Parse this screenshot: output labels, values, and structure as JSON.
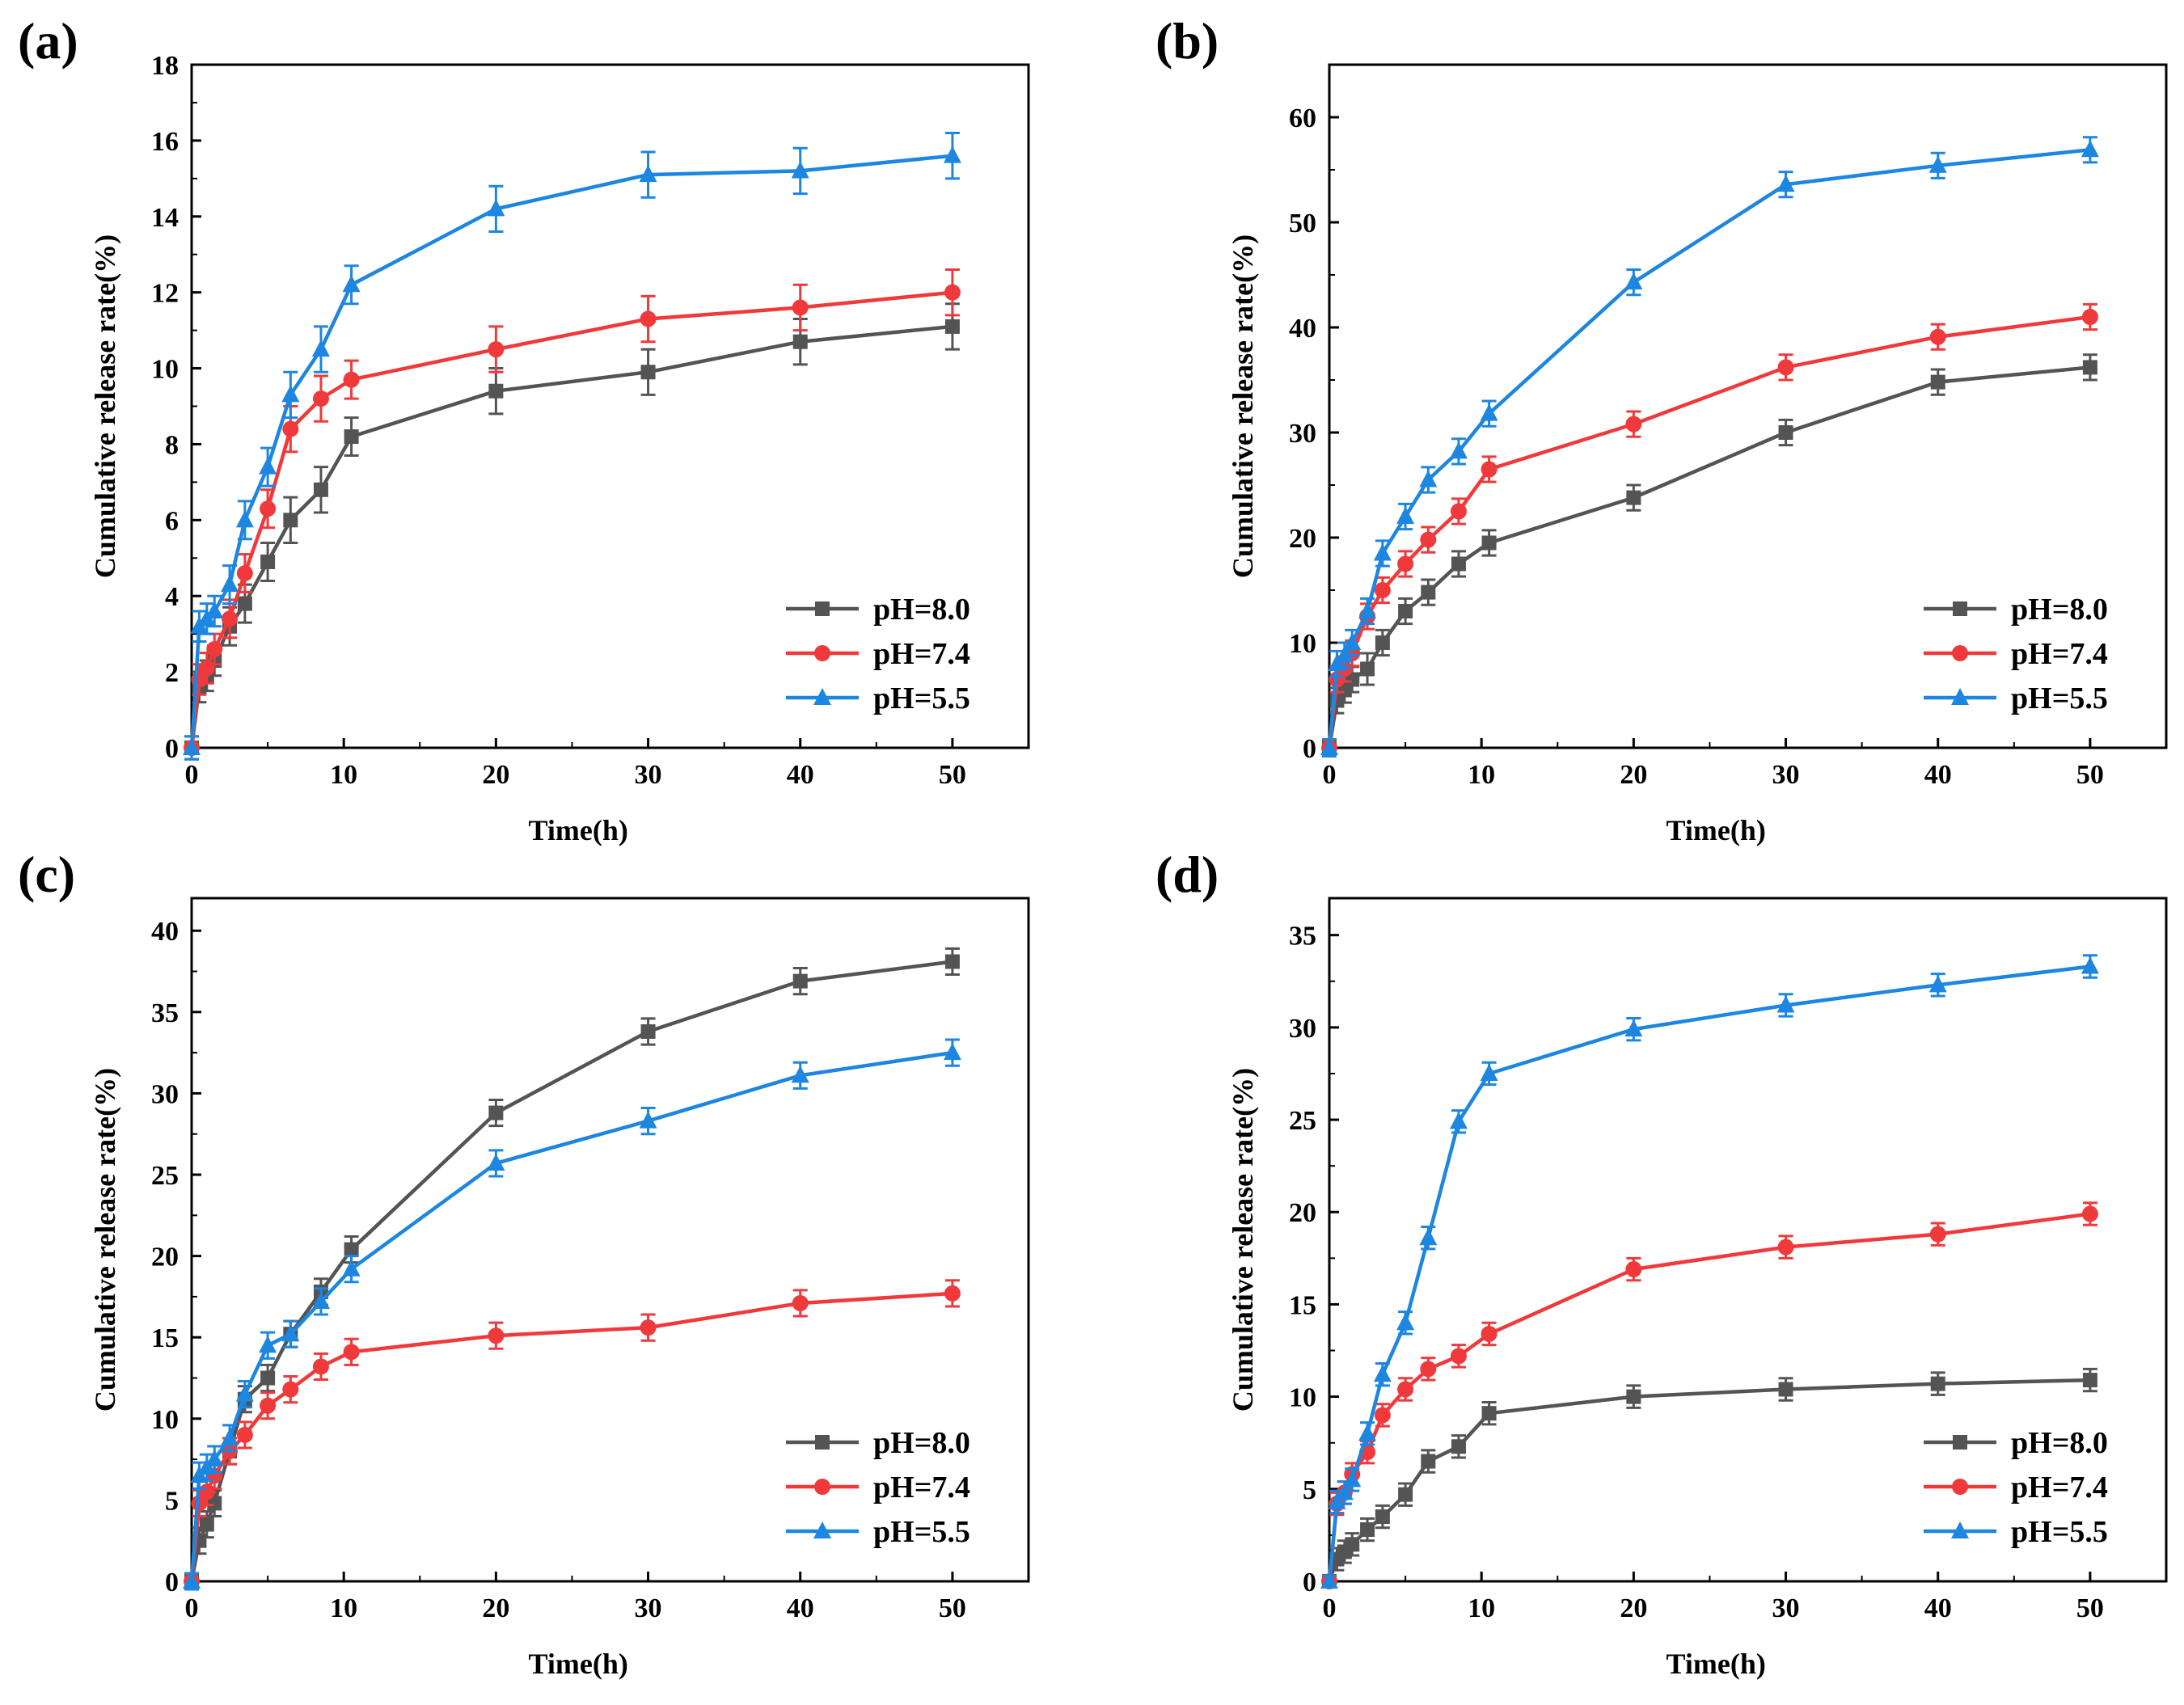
{
  "figure": {
    "panel_count": 4
  },
  "chart_data": [
    {
      "panel": "(a)",
      "type": "line",
      "xlabel": "Time(h)",
      "ylabel": "Cumulative release rate(%)",
      "xlim": [
        0,
        55
      ],
      "ylim": [
        0,
        18
      ],
      "xticks": [
        0,
        10,
        20,
        30,
        40,
        50
      ],
      "yticks": [
        0,
        2,
        4,
        6,
        8,
        10,
        12,
        14,
        16,
        18
      ],
      "x": [
        0,
        0.5,
        1,
        1.5,
        2.5,
        3.5,
        5,
        6.5,
        8.5,
        10.5,
        20,
        30,
        40,
        50
      ],
      "legend_position": "bottom-right",
      "series": [
        {
          "name": "pH=8.0",
          "color": "#545454",
          "marker": "square",
          "values": [
            0,
            1.6,
            1.9,
            2.3,
            3.2,
            3.8,
            4.9,
            6.0,
            6.8,
            8.2,
            9.4,
            9.9,
            10.7,
            11.1
          ],
          "errors": [
            0.3,
            0.4,
            0.4,
            0.4,
            0.5,
            0.5,
            0.5,
            0.6,
            0.6,
            0.5,
            0.6,
            0.6,
            0.6,
            0.6
          ]
        },
        {
          "name": "pH=7.4",
          "color": "#f0393b",
          "marker": "circle",
          "values": [
            0,
            1.8,
            2.1,
            2.6,
            3.4,
            4.6,
            6.3,
            8.4,
            9.2,
            9.7,
            10.5,
            11.3,
            11.6,
            12.0
          ],
          "errors": [
            0.3,
            0.4,
            0.4,
            0.4,
            0.5,
            0.5,
            0.5,
            0.6,
            0.6,
            0.5,
            0.6,
            0.6,
            0.6,
            0.6
          ]
        },
        {
          "name": "pH=5.5",
          "color": "#1c86e0",
          "marker": "triangle",
          "values": [
            0,
            3.2,
            3.4,
            3.6,
            4.3,
            6.0,
            7.4,
            9.3,
            10.5,
            12.2,
            14.2,
            15.1,
            15.2,
            15.6
          ],
          "errors": [
            0.3,
            0.4,
            0.4,
            0.4,
            0.5,
            0.5,
            0.5,
            0.6,
            0.6,
            0.5,
            0.6,
            0.6,
            0.6,
            0.6
          ]
        }
      ]
    },
    {
      "panel": "(b)",
      "type": "line",
      "xlabel": "Time(h)",
      "ylabel": "Cumulative release rate(%)",
      "xlim": [
        0,
        55
      ],
      "ylim": [
        0,
        65
      ],
      "xticks": [
        0,
        10,
        20,
        30,
        40,
        50
      ],
      "yticks": [
        0,
        10,
        20,
        30,
        40,
        50,
        60
      ],
      "x": [
        0,
        0.5,
        1,
        1.5,
        2.5,
        3.5,
        5,
        6.5,
        8.5,
        10.5,
        20,
        30,
        40,
        50
      ],
      "legend_position": "bottom-right",
      "series": [
        {
          "name": "pH=8.0",
          "color": "#545454",
          "marker": "square",
          "values": [
            0,
            4.5,
            5.5,
            6.5,
            7.5,
            10.0,
            13.0,
            14.8,
            17.5,
            19.5,
            23.8,
            30.0,
            34.8,
            36.2
          ],
          "errors": [
            0.8,
            1.2,
            1.2,
            1.2,
            1.5,
            1.2,
            1.2,
            1.2,
            1.2,
            1.2,
            1.2,
            1.2,
            1.2,
            1.2
          ]
        },
        {
          "name": "pH=7.4",
          "color": "#f0393b",
          "marker": "circle",
          "values": [
            0,
            6.5,
            7.5,
            9.0,
            12.5,
            15.0,
            17.5,
            19.8,
            22.5,
            26.5,
            30.8,
            36.2,
            39.1,
            41.0
          ],
          "errors": [
            0.8,
            1.2,
            1.2,
            1.2,
            1.2,
            1.2,
            1.2,
            1.2,
            1.2,
            1.2,
            1.2,
            1.2,
            1.2,
            1.2
          ]
        },
        {
          "name": "pH=5.5",
          "color": "#1c86e0",
          "marker": "triangle",
          "values": [
            0,
            8.0,
            8.8,
            10.0,
            13.0,
            18.5,
            22.0,
            25.5,
            28.2,
            31.8,
            44.3,
            53.6,
            55.4,
            56.9
          ],
          "errors": [
            0.8,
            1.2,
            1.2,
            1.2,
            1.2,
            1.2,
            1.2,
            1.2,
            1.2,
            1.2,
            1.2,
            1.2,
            1.2,
            1.2
          ]
        }
      ]
    },
    {
      "panel": "(c)",
      "type": "line",
      "xlabel": "Time(h)",
      "ylabel": "Cumulative release rate(%)",
      "xlim": [
        0,
        55
      ],
      "ylim": [
        0,
        42
      ],
      "xticks": [
        0,
        10,
        20,
        30,
        40,
        50
      ],
      "yticks": [
        0,
        5,
        10,
        15,
        20,
        25,
        30,
        35,
        40
      ],
      "x": [
        0,
        0.5,
        1,
        1.5,
        2.5,
        3.5,
        5,
        6.5,
        8.5,
        10.5,
        20,
        30,
        40,
        50
      ],
      "legend_position": "bottom-right",
      "series": [
        {
          "name": "pH=8.0",
          "color": "#545454",
          "marker": "square",
          "values": [
            0,
            2.5,
            3.5,
            4.8,
            8.0,
            11.2,
            12.5,
            15.2,
            17.8,
            20.4,
            28.8,
            33.8,
            36.9,
            38.1
          ],
          "errors": [
            0.5,
            0.8,
            0.8,
            0.8,
            0.8,
            0.8,
            0.8,
            0.8,
            0.8,
            0.8,
            0.8,
            0.8,
            0.8,
            0.8
          ]
        },
        {
          "name": "pH=7.4",
          "color": "#f0393b",
          "marker": "circle",
          "values": [
            0,
            4.8,
            5.5,
            6.5,
            8.0,
            9.0,
            10.8,
            11.8,
            13.2,
            14.1,
            15.1,
            15.6,
            17.1,
            17.7
          ],
          "errors": [
            0.5,
            0.8,
            0.8,
            0.8,
            0.8,
            0.8,
            0.8,
            0.8,
            0.8,
            0.8,
            0.8,
            0.8,
            0.8,
            0.8
          ]
        },
        {
          "name": "pH=5.5",
          "color": "#1c86e0",
          "marker": "triangle",
          "values": [
            0,
            6.5,
            7.0,
            7.5,
            8.8,
            11.5,
            14.5,
            15.2,
            17.2,
            19.2,
            25.7,
            28.3,
            31.1,
            32.5
          ],
          "errors": [
            0.5,
            0.8,
            0.8,
            0.8,
            0.8,
            0.8,
            0.8,
            0.8,
            0.8,
            0.8,
            0.8,
            0.8,
            0.8,
            0.8
          ]
        }
      ]
    },
    {
      "panel": "(d)",
      "type": "line",
      "xlabel": "Time(h)",
      "ylabel": "Cumulative release rate(%)",
      "xlim": [
        0,
        55
      ],
      "ylim": [
        0,
        37
      ],
      "xticks": [
        0,
        10,
        20,
        30,
        40,
        50
      ],
      "yticks": [
        0,
        5,
        10,
        15,
        20,
        25,
        30,
        35
      ],
      "x": [
        0,
        0.5,
        1,
        1.5,
        2.5,
        3.5,
        5,
        6.5,
        8.5,
        10.5,
        20,
        30,
        40,
        50
      ],
      "legend_position": "bottom-right",
      "series": [
        {
          "name": "pH=8.0",
          "color": "#545454",
          "marker": "square",
          "values": [
            0,
            1.2,
            1.6,
            2.0,
            2.8,
            3.5,
            4.7,
            6.5,
            7.3,
            9.1,
            10.0,
            10.4,
            10.7,
            10.9
          ],
          "errors": [
            0.3,
            0.6,
            0.6,
            0.6,
            0.6,
            0.6,
            0.6,
            0.6,
            0.6,
            0.6,
            0.6,
            0.6,
            0.6,
            0.6
          ]
        },
        {
          "name": "pH=7.4",
          "color": "#f0393b",
          "marker": "circle",
          "values": [
            0,
            4.2,
            4.8,
            5.8,
            7.0,
            9.0,
            10.4,
            11.5,
            12.2,
            13.4,
            16.9,
            18.1,
            18.8,
            19.9
          ],
          "errors": [
            0.3,
            0.6,
            0.6,
            0.6,
            0.6,
            0.6,
            0.6,
            0.6,
            0.6,
            0.6,
            0.6,
            0.6,
            0.6,
            0.6
          ]
        },
        {
          "name": "pH=5.5",
          "color": "#1c86e0",
          "marker": "triangle",
          "values": [
            0,
            4.3,
            4.8,
            5.5,
            8.0,
            11.2,
            14.0,
            18.6,
            24.9,
            27.5,
            29.9,
            31.2,
            32.3,
            33.3
          ],
          "errors": [
            0.3,
            0.6,
            0.6,
            0.6,
            0.6,
            0.6,
            0.6,
            0.6,
            0.6,
            0.6,
            0.6,
            0.6,
            0.6,
            0.6
          ]
        }
      ]
    }
  ]
}
